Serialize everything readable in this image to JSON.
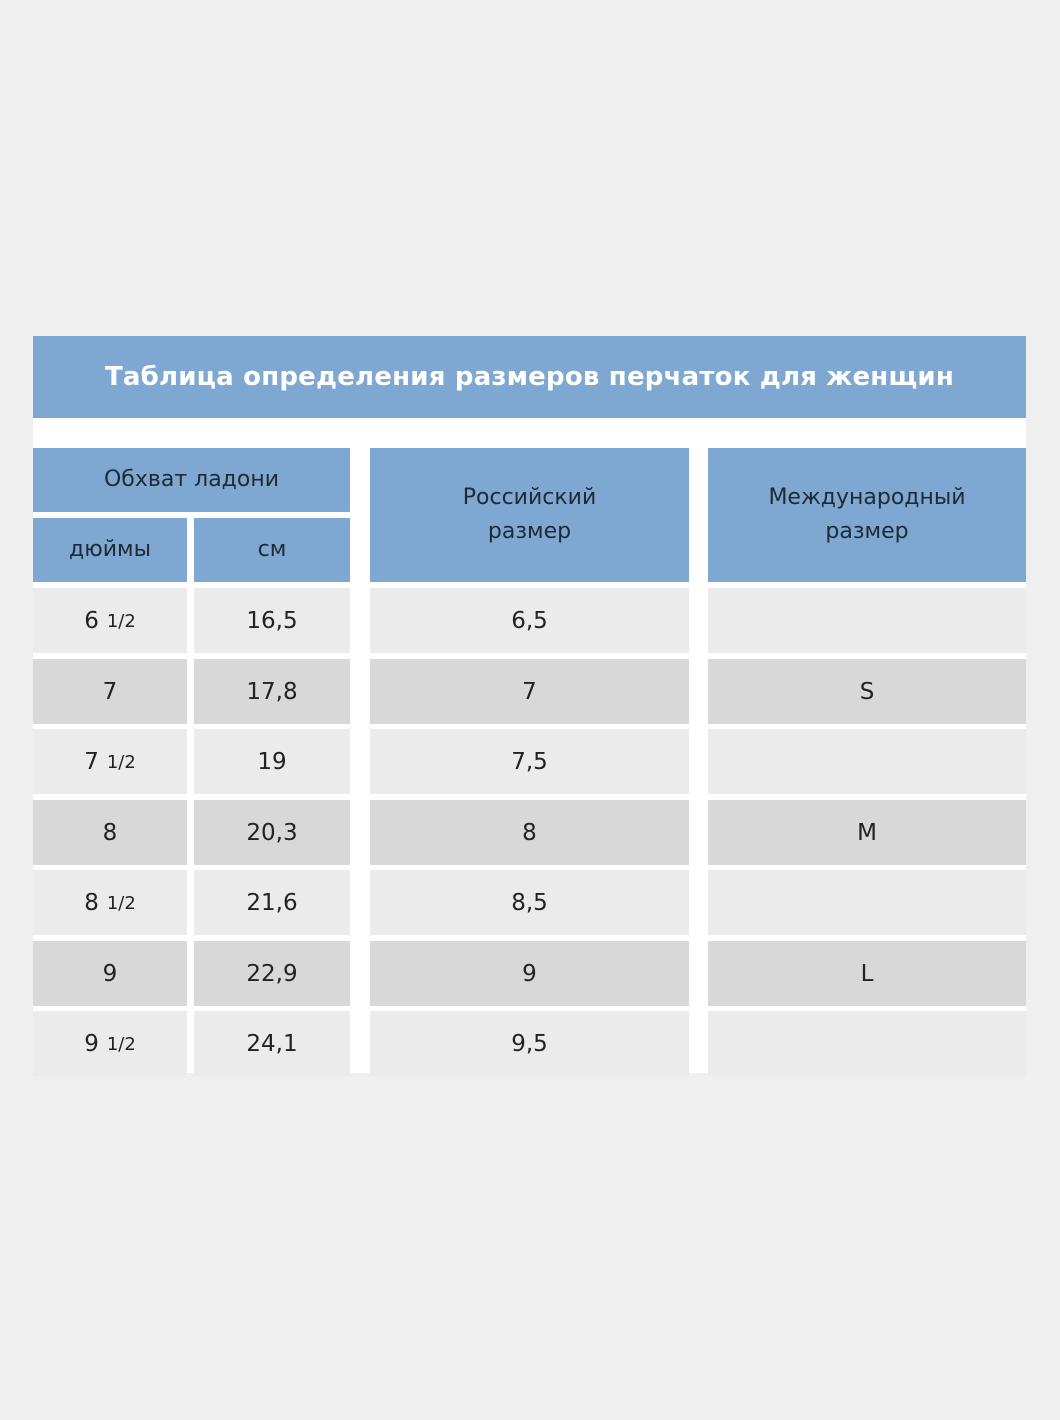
{
  "title": "Таблица определения размеров перчаток для женщин",
  "headers": {
    "girth": "Обхват ладони",
    "inches": "дюймы",
    "cm": "см",
    "russian_line1": "Российский",
    "russian_line2": "размер",
    "intl_line1": "Международный",
    "intl_line2": "размер"
  },
  "rows": [
    {
      "inch_whole": "6",
      "inch_frac": "1/2",
      "cm": "16,5",
      "ru": "6,5",
      "intl": ""
    },
    {
      "inch_whole": "7",
      "inch_frac": "",
      "cm": "17,8",
      "ru": "7",
      "intl": "S"
    },
    {
      "inch_whole": "7",
      "inch_frac": "1/2",
      "cm": "19",
      "ru": "7,5",
      "intl": ""
    },
    {
      "inch_whole": "8",
      "inch_frac": "",
      "cm": "20,3",
      "ru": "8",
      "intl": "M"
    },
    {
      "inch_whole": "8",
      "inch_frac": "1/2",
      "cm": "21,6",
      "ru": "8,5",
      "intl": ""
    },
    {
      "inch_whole": "9",
      "inch_frac": "",
      "cm": "22,9",
      "ru": "9",
      "intl": "L"
    },
    {
      "inch_whole": "9",
      "inch_frac": "1/2",
      "cm": "24,1",
      "ru": "9,5",
      "intl": ""
    }
  ],
  "colors": {
    "header_blue": "#7ea8d1",
    "row_light": "#ebebeb",
    "row_dark": "#d8d8d8",
    "background": "#efefef"
  }
}
